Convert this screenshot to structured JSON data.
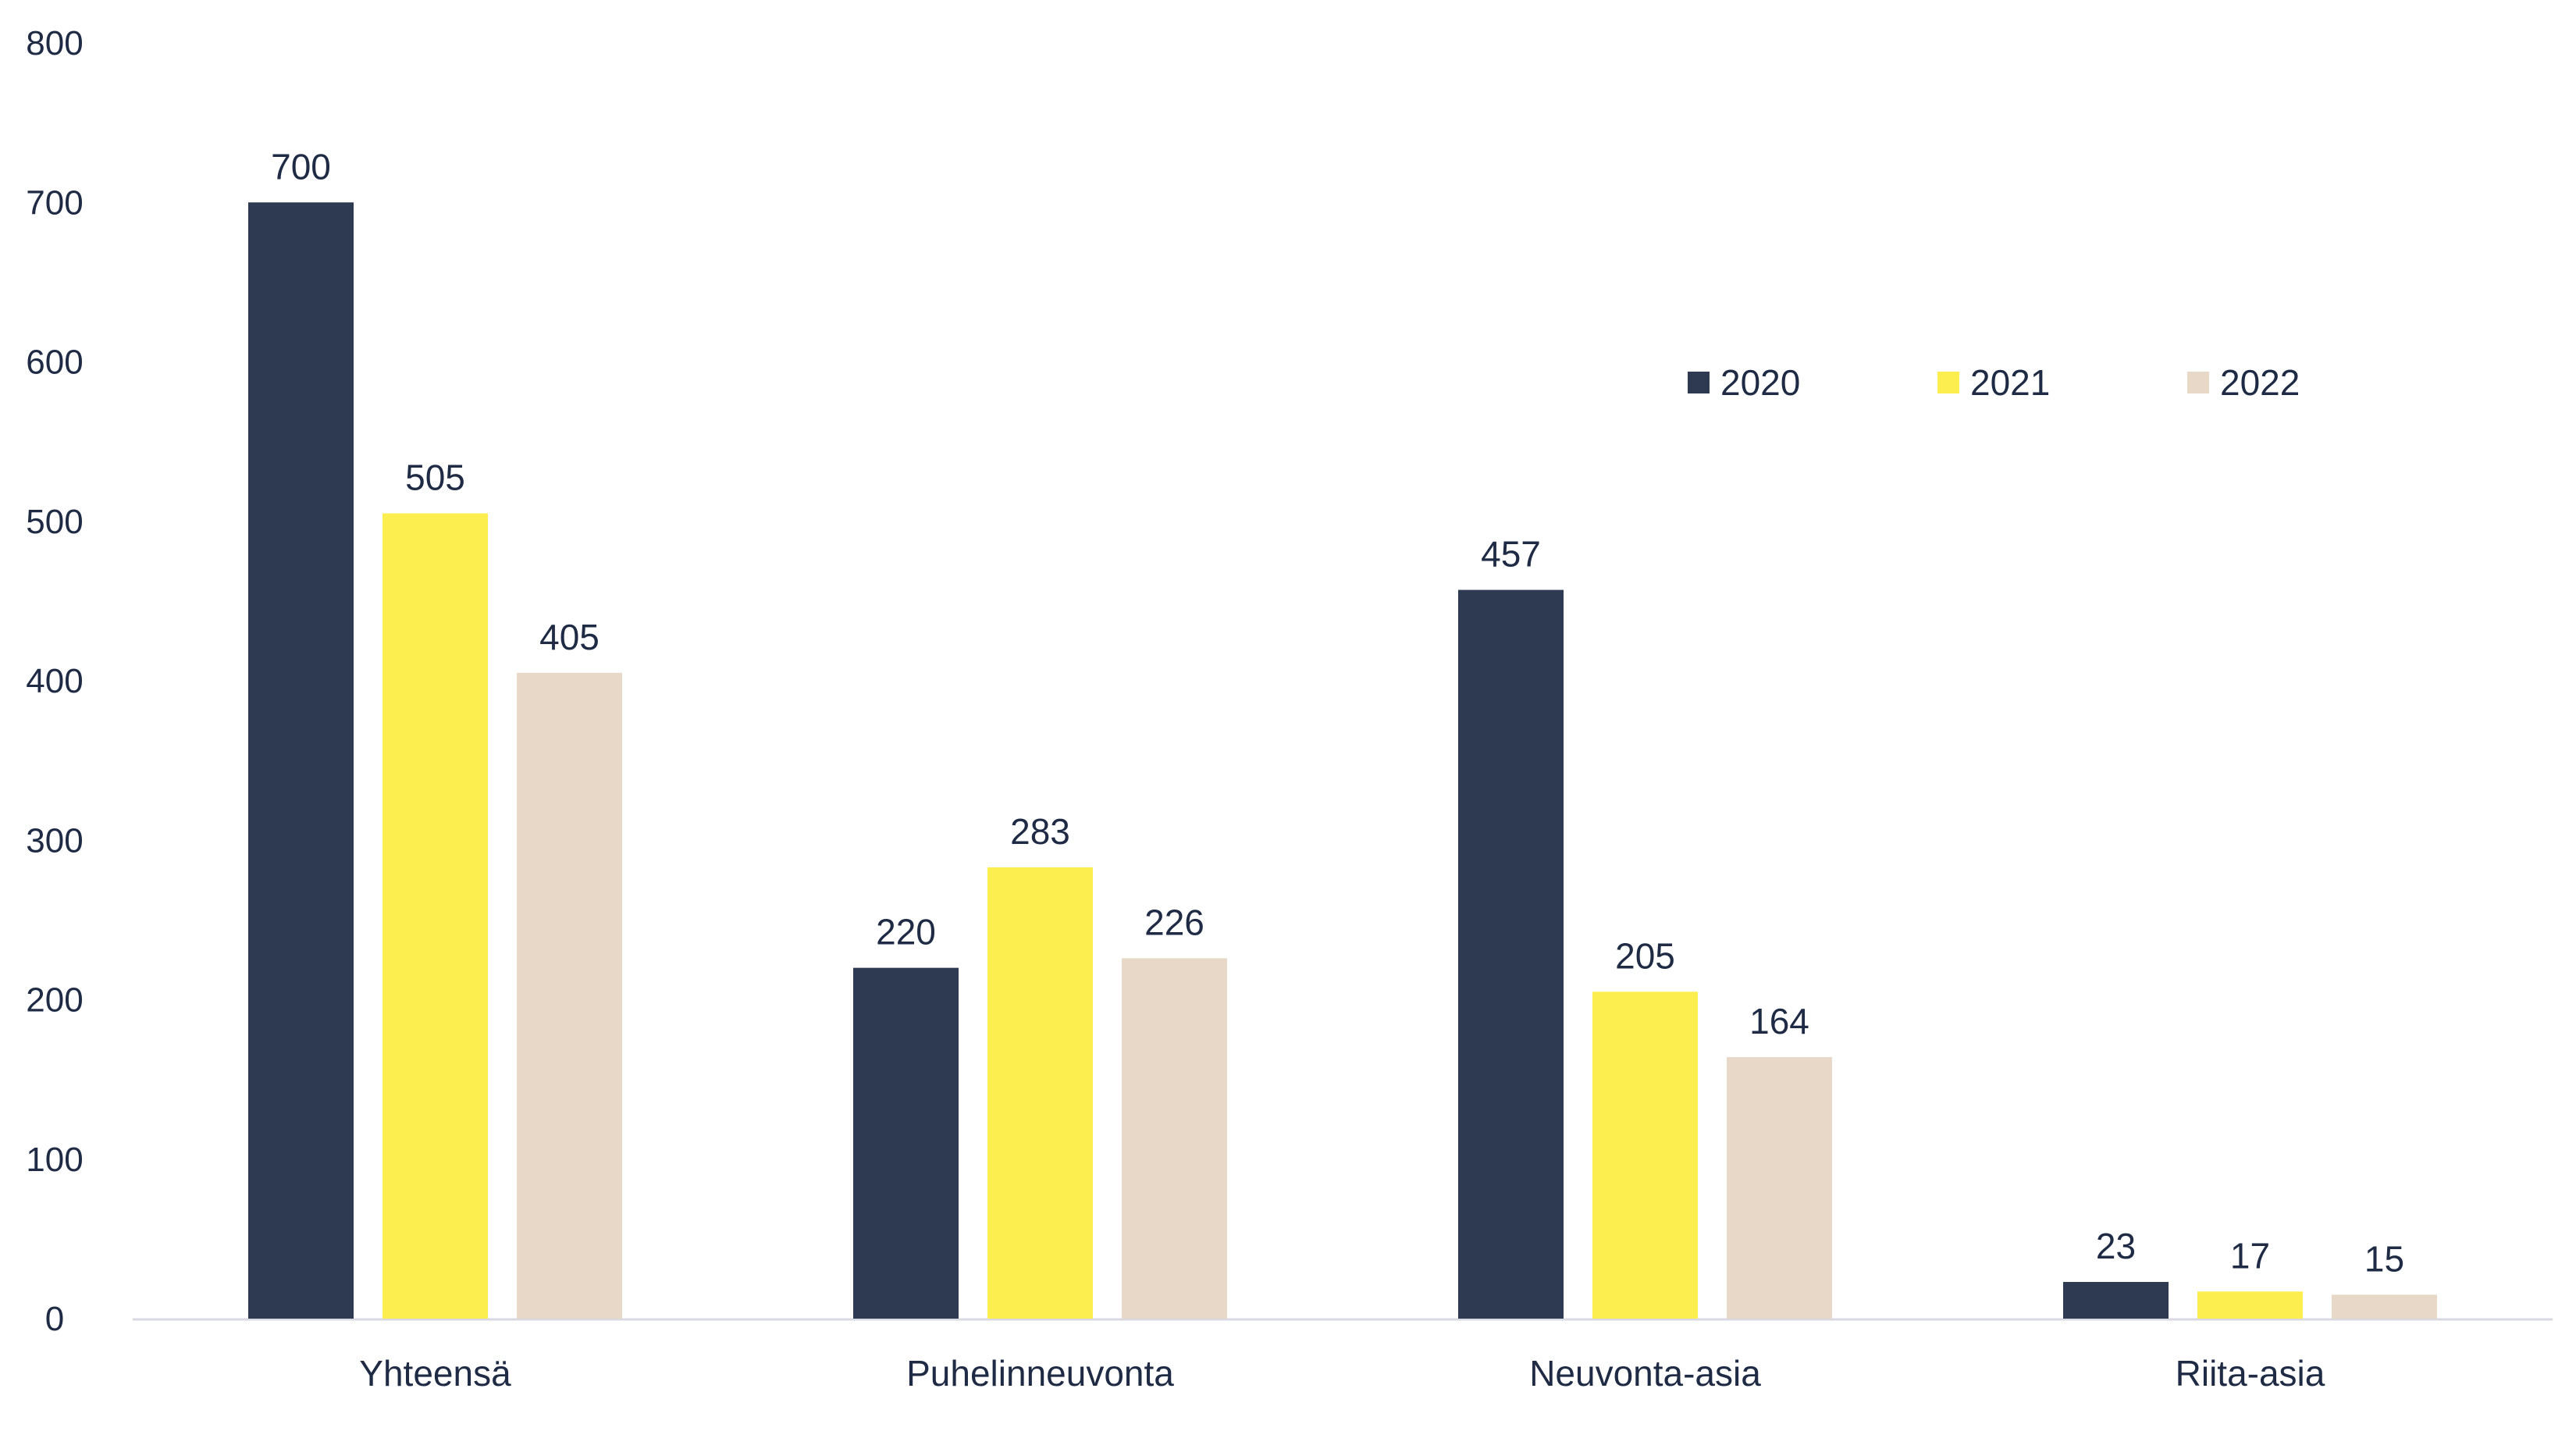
{
  "chart_data": {
    "type": "bar",
    "title": "",
    "xlabel": "",
    "ylabel": "",
    "categories": [
      "Yhteensä",
      "Puhelinneuvonta",
      "Neuvonta-asia",
      "Riita-asia"
    ],
    "series": [
      {
        "name": "2020",
        "color": "#2e3a52",
        "values": [
          700,
          220,
          457,
          23
        ]
      },
      {
        "name": "2021",
        "color": "#fcee4f",
        "values": [
          505,
          283,
          205,
          17
        ]
      },
      {
        "name": "2022",
        "color": "#e8d8c8",
        "values": [
          405,
          226,
          164,
          15
        ]
      }
    ],
    "ylim": [
      0,
      800
    ],
    "yticks": [
      "0",
      "100",
      "200",
      "300",
      "400",
      "500",
      "600",
      "700",
      "800"
    ],
    "grid": false,
    "legend_position": "top-right",
    "axis_color": "#d9d9e3"
  }
}
